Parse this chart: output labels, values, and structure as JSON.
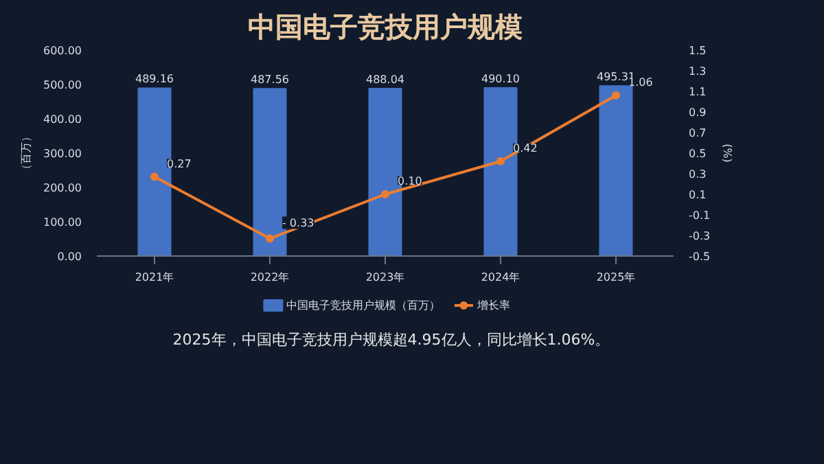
{
  "chart_data": {
    "type": "bar",
    "title": "中国电子竞技用户规模",
    "categories": [
      "2021年",
      "2022年",
      "2023年",
      "2024年",
      "2025年"
    ],
    "series": [
      {
        "name": "中国电子竞技用户规模（百万）",
        "color": "#4472c4",
        "values": [
          489.16,
          487.56,
          488.04,
          490.1,
          495.31
        ],
        "value_labels": [
          "489.16",
          "487.56",
          "488.04",
          "490.10",
          "495.31"
        ]
      },
      {
        "name": "增长率",
        "type": "line",
        "axis": "y2",
        "color": "#ed7d31",
        "values": [
          0.27,
          -0.33,
          0.1,
          0.42,
          1.06
        ],
        "value_labels": [
          "0.27",
          "- 0.33",
          "0.10",
          "0.42",
          "1.06"
        ]
      }
    ],
    "ylabel": "（百万）",
    "y2label": "(%)",
    "ylim": [
      0,
      600
    ],
    "yticks": [
      {
        "value": 0,
        "label": "0.00"
      },
      {
        "value": 100,
        "label": "100.00"
      },
      {
        "value": 200,
        "label": "200.00"
      },
      {
        "value": 300,
        "label": "300.00"
      },
      {
        "value": 400,
        "label": "400.00"
      },
      {
        "value": 500,
        "label": "500.00"
      },
      {
        "value": 600,
        "label": "600.00"
      }
    ],
    "y2lim": [
      -0.5,
      1.5
    ],
    "y2ticks": [
      -0.5,
      -0.3,
      -0.1,
      0.1,
      0.3,
      0.5,
      0.7,
      0.9,
      1.1,
      1.3,
      1.5
    ],
    "legend": "bottom",
    "marker": "circle",
    "grid": false,
    "annotations": [
      "2025年，中国电子竞技用户规模超4.95亿人，同比增长1.06%。"
    ]
  }
}
